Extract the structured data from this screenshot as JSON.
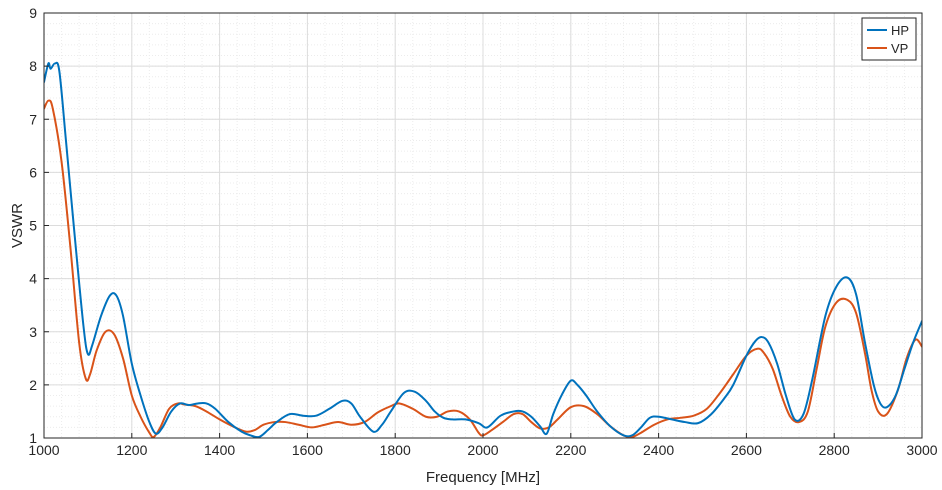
{
  "chart_data": {
    "type": "line",
    "xlabel": "Frequency [MHz]",
    "ylabel": "VSWR",
    "xlim": [
      1000,
      3000
    ],
    "ylim": [
      1,
      9
    ],
    "xticks": [
      1000,
      1200,
      1400,
      1600,
      1800,
      2000,
      2200,
      2400,
      2600,
      2800,
      3000
    ],
    "yticks": [
      1,
      2,
      3,
      4,
      5,
      6,
      7,
      8,
      9
    ],
    "grid": true,
    "minor_grid": true,
    "legend_position": "top-right",
    "series": [
      {
        "name": "HP",
        "color": "#0072BD",
        "x": [
          1000,
          1010,
          1015,
          1025,
          1035,
          1050,
          1070,
          1090,
          1100,
          1110,
          1130,
          1150,
          1165,
          1180,
          1200,
          1220,
          1240,
          1255,
          1270,
          1290,
          1310,
          1330,
          1350,
          1370,
          1390,
          1420,
          1450,
          1470,
          1490,
          1510,
          1530,
          1560,
          1590,
          1620,
          1650,
          1680,
          1700,
          1720,
          1750,
          1770,
          1790,
          1820,
          1845,
          1870,
          1890,
          1910,
          1930,
          1960,
          1990,
          2010,
          2040,
          2070,
          2090,
          2110,
          2130,
          2145,
          2160,
          2180,
          2200,
          2215,
          2235,
          2260,
          2290,
          2320,
          2340,
          2360,
          2380,
          2400,
          2430,
          2460,
          2490,
          2520,
          2550,
          2570,
          2600,
          2620,
          2635,
          2650,
          2670,
          2690,
          2710,
          2730,
          2750,
          2780,
          2805,
          2830,
          2850,
          2870,
          2890,
          2905,
          2920,
          2940,
          2960,
          2980,
          3000
        ],
        "y": [
          7.7,
          8.05,
          7.95,
          8.05,
          7.9,
          6.6,
          4.8,
          3.1,
          2.58,
          2.75,
          3.3,
          3.68,
          3.68,
          3.3,
          2.4,
          1.8,
          1.3,
          1.08,
          1.2,
          1.5,
          1.65,
          1.62,
          1.65,
          1.65,
          1.55,
          1.3,
          1.12,
          1.05,
          1.02,
          1.15,
          1.3,
          1.45,
          1.42,
          1.42,
          1.55,
          1.7,
          1.65,
          1.4,
          1.12,
          1.25,
          1.5,
          1.85,
          1.87,
          1.7,
          1.5,
          1.38,
          1.35,
          1.35,
          1.28,
          1.2,
          1.42,
          1.5,
          1.5,
          1.4,
          1.22,
          1.08,
          1.45,
          1.82,
          2.08,
          2.0,
          1.8,
          1.5,
          1.22,
          1.05,
          1.05,
          1.2,
          1.38,
          1.4,
          1.35,
          1.3,
          1.28,
          1.45,
          1.75,
          2.0,
          2.55,
          2.82,
          2.9,
          2.8,
          2.4,
          1.8,
          1.35,
          1.45,
          2.1,
          3.3,
          3.85,
          4.02,
          3.7,
          2.8,
          2.0,
          1.65,
          1.58,
          1.8,
          2.3,
          2.8,
          3.2
        ]
      },
      {
        "name": "VP",
        "color": "#D95319",
        "x": [
          1000,
          1010,
          1020,
          1040,
          1060,
          1080,
          1095,
          1105,
          1120,
          1140,
          1160,
          1180,
          1200,
          1220,
          1240,
          1250,
          1265,
          1285,
          1305,
          1320,
          1345,
          1370,
          1400,
          1430,
          1460,
          1480,
          1500,
          1525,
          1550,
          1580,
          1610,
          1640,
          1670,
          1700,
          1730,
          1760,
          1790,
          1810,
          1840,
          1870,
          1895,
          1920,
          1945,
          1970,
          1990,
          2000,
          2020,
          2045,
          2070,
          2090,
          2110,
          2130,
          2150,
          2170,
          2200,
          2230,
          2260,
          2290,
          2320,
          2340,
          2360,
          2390,
          2420,
          2450,
          2480,
          2510,
          2540,
          2570,
          2600,
          2625,
          2640,
          2660,
          2680,
          2700,
          2720,
          2740,
          2760,
          2780,
          2805,
          2830,
          2850,
          2870,
          2885,
          2900,
          2920,
          2945,
          2965,
          2985,
          3000
        ],
        "y": [
          7.2,
          7.35,
          7.2,
          6.2,
          4.6,
          2.8,
          2.12,
          2.2,
          2.65,
          3.0,
          2.95,
          2.5,
          1.8,
          1.4,
          1.1,
          1.02,
          1.2,
          1.55,
          1.65,
          1.63,
          1.6,
          1.5,
          1.35,
          1.22,
          1.12,
          1.15,
          1.25,
          1.3,
          1.3,
          1.25,
          1.2,
          1.25,
          1.3,
          1.25,
          1.3,
          1.48,
          1.6,
          1.65,
          1.55,
          1.4,
          1.4,
          1.5,
          1.5,
          1.35,
          1.1,
          1.05,
          1.15,
          1.3,
          1.45,
          1.45,
          1.3,
          1.18,
          1.2,
          1.35,
          1.58,
          1.6,
          1.45,
          1.22,
          1.05,
          1.02,
          1.1,
          1.25,
          1.35,
          1.38,
          1.42,
          1.55,
          1.85,
          2.2,
          2.55,
          2.68,
          2.6,
          2.3,
          1.8,
          1.4,
          1.3,
          1.5,
          2.3,
          3.1,
          3.55,
          3.6,
          3.35,
          2.6,
          1.9,
          1.5,
          1.45,
          1.9,
          2.5,
          2.85,
          2.72
        ]
      }
    ]
  }
}
